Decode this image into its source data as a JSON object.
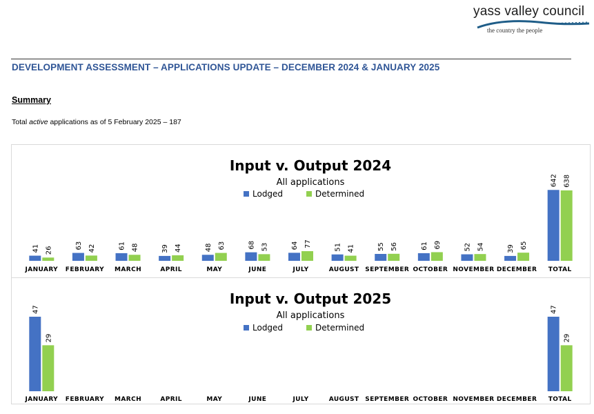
{
  "logo": {
    "name": "yass valley council",
    "tagline": "the country   the people"
  },
  "document": {
    "title": "DEVELOPMENT ASSESSMENT – APPLICATIONS UPDATE – DECEMBER 2024 & JANUARY 2025",
    "summary_heading": "Summary",
    "summary_prefix": "Total ",
    "summary_emphasis": "active",
    "summary_suffix": " applications as of 5 February 2025 – 187"
  },
  "colors": {
    "lodged": "#4472c4",
    "determined": "#92d050",
    "accent": "#2f5596"
  },
  "chart_data": [
    {
      "type": "bar",
      "title": "Input v. Output 2024",
      "subtitle": "All applications",
      "legend_position": "top-center",
      "categories": [
        "JANUARY",
        "FEBRUARY",
        "MARCH",
        "APRIL",
        "MAY",
        "JUNE",
        "JULY",
        "AUGUST",
        "SEPTEMBER",
        "OCTOBER",
        "NOVEMBER",
        "DECEMBER",
        "TOTAL"
      ],
      "series": [
        {
          "name": "Lodged",
          "values": [
            41,
            63,
            61,
            39,
            48,
            68,
            64,
            51,
            55,
            61,
            52,
            39,
            642
          ]
        },
        {
          "name": "Determined",
          "values": [
            26,
            42,
            48,
            44,
            63,
            53,
            77,
            41,
            56,
            69,
            54,
            65,
            638
          ]
        }
      ],
      "ylim": [
        0,
        700
      ]
    },
    {
      "type": "bar",
      "title": "Input v. Output 2025",
      "subtitle": "All applications",
      "legend_position": "top-center",
      "categories": [
        "JANUARY",
        "FEBRUARY",
        "MARCH",
        "APRIL",
        "MAY",
        "JUNE",
        "JULY",
        "AUGUST",
        "SEPTEMBER",
        "OCTOBER",
        "NOVEMBER",
        "DECEMBER",
        "TOTAL"
      ],
      "series": [
        {
          "name": "Lodged",
          "values": [
            47,
            null,
            null,
            null,
            null,
            null,
            null,
            null,
            null,
            null,
            null,
            null,
            47
          ]
        },
        {
          "name": "Determined",
          "values": [
            29,
            null,
            null,
            null,
            null,
            null,
            null,
            null,
            null,
            null,
            null,
            null,
            29
          ]
        }
      ],
      "ylim": [
        0,
        47
      ]
    }
  ]
}
